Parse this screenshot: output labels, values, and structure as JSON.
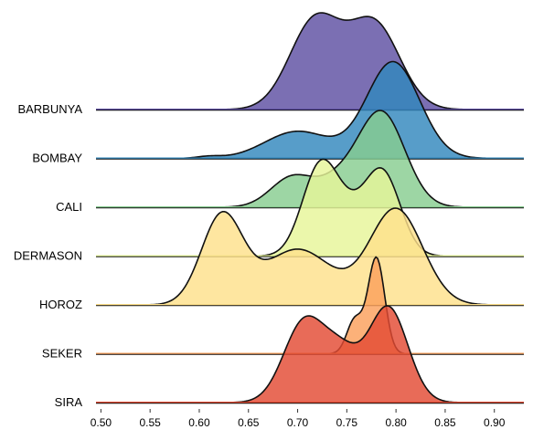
{
  "chart_data": {
    "type": "area",
    "title": "",
    "xlabel": "",
    "ylabel": "",
    "xlim": [
      0.495,
      0.93
    ],
    "xticks": [
      "0.50",
      "0.55",
      "0.60",
      "0.65",
      "0.70",
      "0.75",
      "0.80",
      "0.85",
      "0.90"
    ],
    "series": [
      {
        "name": "BARBUNYA",
        "color": "#5e4fa2",
        "components": [
          {
            "m": 0.718,
            "s": 0.026,
            "w": 1.0
          },
          {
            "m": 0.778,
            "s": 0.026,
            "w": 0.95
          }
        ]
      },
      {
        "name": "BOMBAY",
        "color": "#3288bd",
        "components": [
          {
            "m": 0.797,
            "s": 0.027,
            "w": 1.0
          },
          {
            "m": 0.7,
            "s": 0.033,
            "w": 0.28
          },
          {
            "m": 0.61,
            "s": 0.012,
            "w": 0.02
          }
        ]
      },
      {
        "name": "CALI",
        "color": "#88cd90",
        "components": [
          {
            "m": 0.785,
            "s": 0.024,
            "w": 1.0
          },
          {
            "m": 0.695,
            "s": 0.022,
            "w": 0.32
          },
          {
            "m": 0.74,
            "s": 0.02,
            "w": 0.22
          }
        ]
      },
      {
        "name": "DERMASON",
        "color": "#e6f598",
        "components": [
          {
            "m": 0.722,
            "s": 0.018,
            "w": 1.0
          },
          {
            "m": 0.787,
            "s": 0.018,
            "w": 0.95
          },
          {
            "m": 0.752,
            "s": 0.02,
            "w": 0.42
          }
        ]
      },
      {
        "name": "HOROZ",
        "color": "#fee08b",
        "components": [
          {
            "m": 0.623,
            "s": 0.021,
            "w": 0.92
          },
          {
            "m": 0.8,
            "s": 0.027,
            "w": 1.0
          },
          {
            "m": 0.7,
            "s": 0.035,
            "w": 0.58
          }
        ]
      },
      {
        "name": "SEKER",
        "color": "#fba05b",
        "components": [
          {
            "m": 0.78,
            "s": 0.0085,
            "w": 1.0
          },
          {
            "m": 0.758,
            "s": 0.008,
            "w": 0.35
          }
        ]
      },
      {
        "name": "SIRA",
        "color": "#e34a33",
        "components": [
          {
            "m": 0.707,
            "s": 0.021,
            "w": 0.85
          },
          {
            "m": 0.792,
            "s": 0.02,
            "w": 1.0
          },
          {
            "m": 0.745,
            "s": 0.018,
            "w": 0.45
          }
        ]
      }
    ]
  }
}
